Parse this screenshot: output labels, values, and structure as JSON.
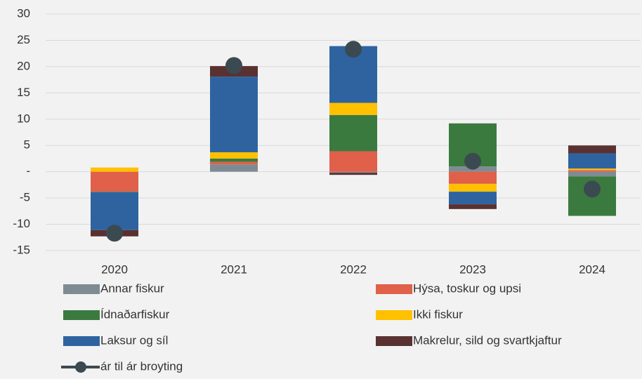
{
  "chart_data": {
    "type": "bar",
    "stacked": true,
    "categories": [
      "2020",
      "2021",
      "2022",
      "2023",
      "2024"
    ],
    "series": [
      {
        "name": "Annar fiskur",
        "color": "#7f8b92",
        "values": [
          0,
          1.4,
          -0.2,
          1.0,
          -0.9
        ]
      },
      {
        "name": "Hýsa, toskur og upsi",
        "color": "#e0604a",
        "values": [
          -3.8,
          0.5,
          3.9,
          -2.3,
          0.3
        ]
      },
      {
        "name": "Ídnaðarfiskur",
        "color": "#3b7a3f",
        "values": [
          -0.1,
          0.6,
          6.9,
          8.2,
          -7.5
        ]
      },
      {
        "name": "Ikki fiskur",
        "color": "#ffc000",
        "values": [
          0.8,
          1.2,
          2.3,
          -1.5,
          0.3
        ]
      },
      {
        "name": "Laksur og síl",
        "color": "#2e63a0",
        "values": [
          -7.2,
          14.4,
          10.8,
          -2.4,
          2.9
        ]
      },
      {
        "name": "Makrelur, sild og svartkjaftur",
        "color": "#5a3131",
        "values": [
          -1.2,
          2.0,
          -0.4,
          -0.9,
          1.5
        ]
      },
      {
        "name": "ár til ár broyting",
        "color": "#3b4a50",
        "type": "line",
        "values": [
          -11.7,
          20.2,
          23.3,
          2.0,
          -3.3
        ]
      }
    ],
    "ylim": [
      -15,
      30
    ],
    "yticks": [
      -15,
      -10,
      -5,
      {
        "value": 0,
        "label": "-"
      },
      5,
      10,
      15,
      20,
      25,
      30
    ],
    "grid": true,
    "legend": "bottom"
  }
}
